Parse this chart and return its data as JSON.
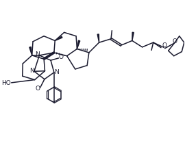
{
  "background_color": "#ffffff",
  "line_color": "#1a1a2e",
  "line_width": 1.1,
  "figsize": [
    2.7,
    2.09
  ],
  "dpi": 100,
  "xlim": [
    0,
    10
  ],
  "ylim": [
    0,
    7.74
  ]
}
